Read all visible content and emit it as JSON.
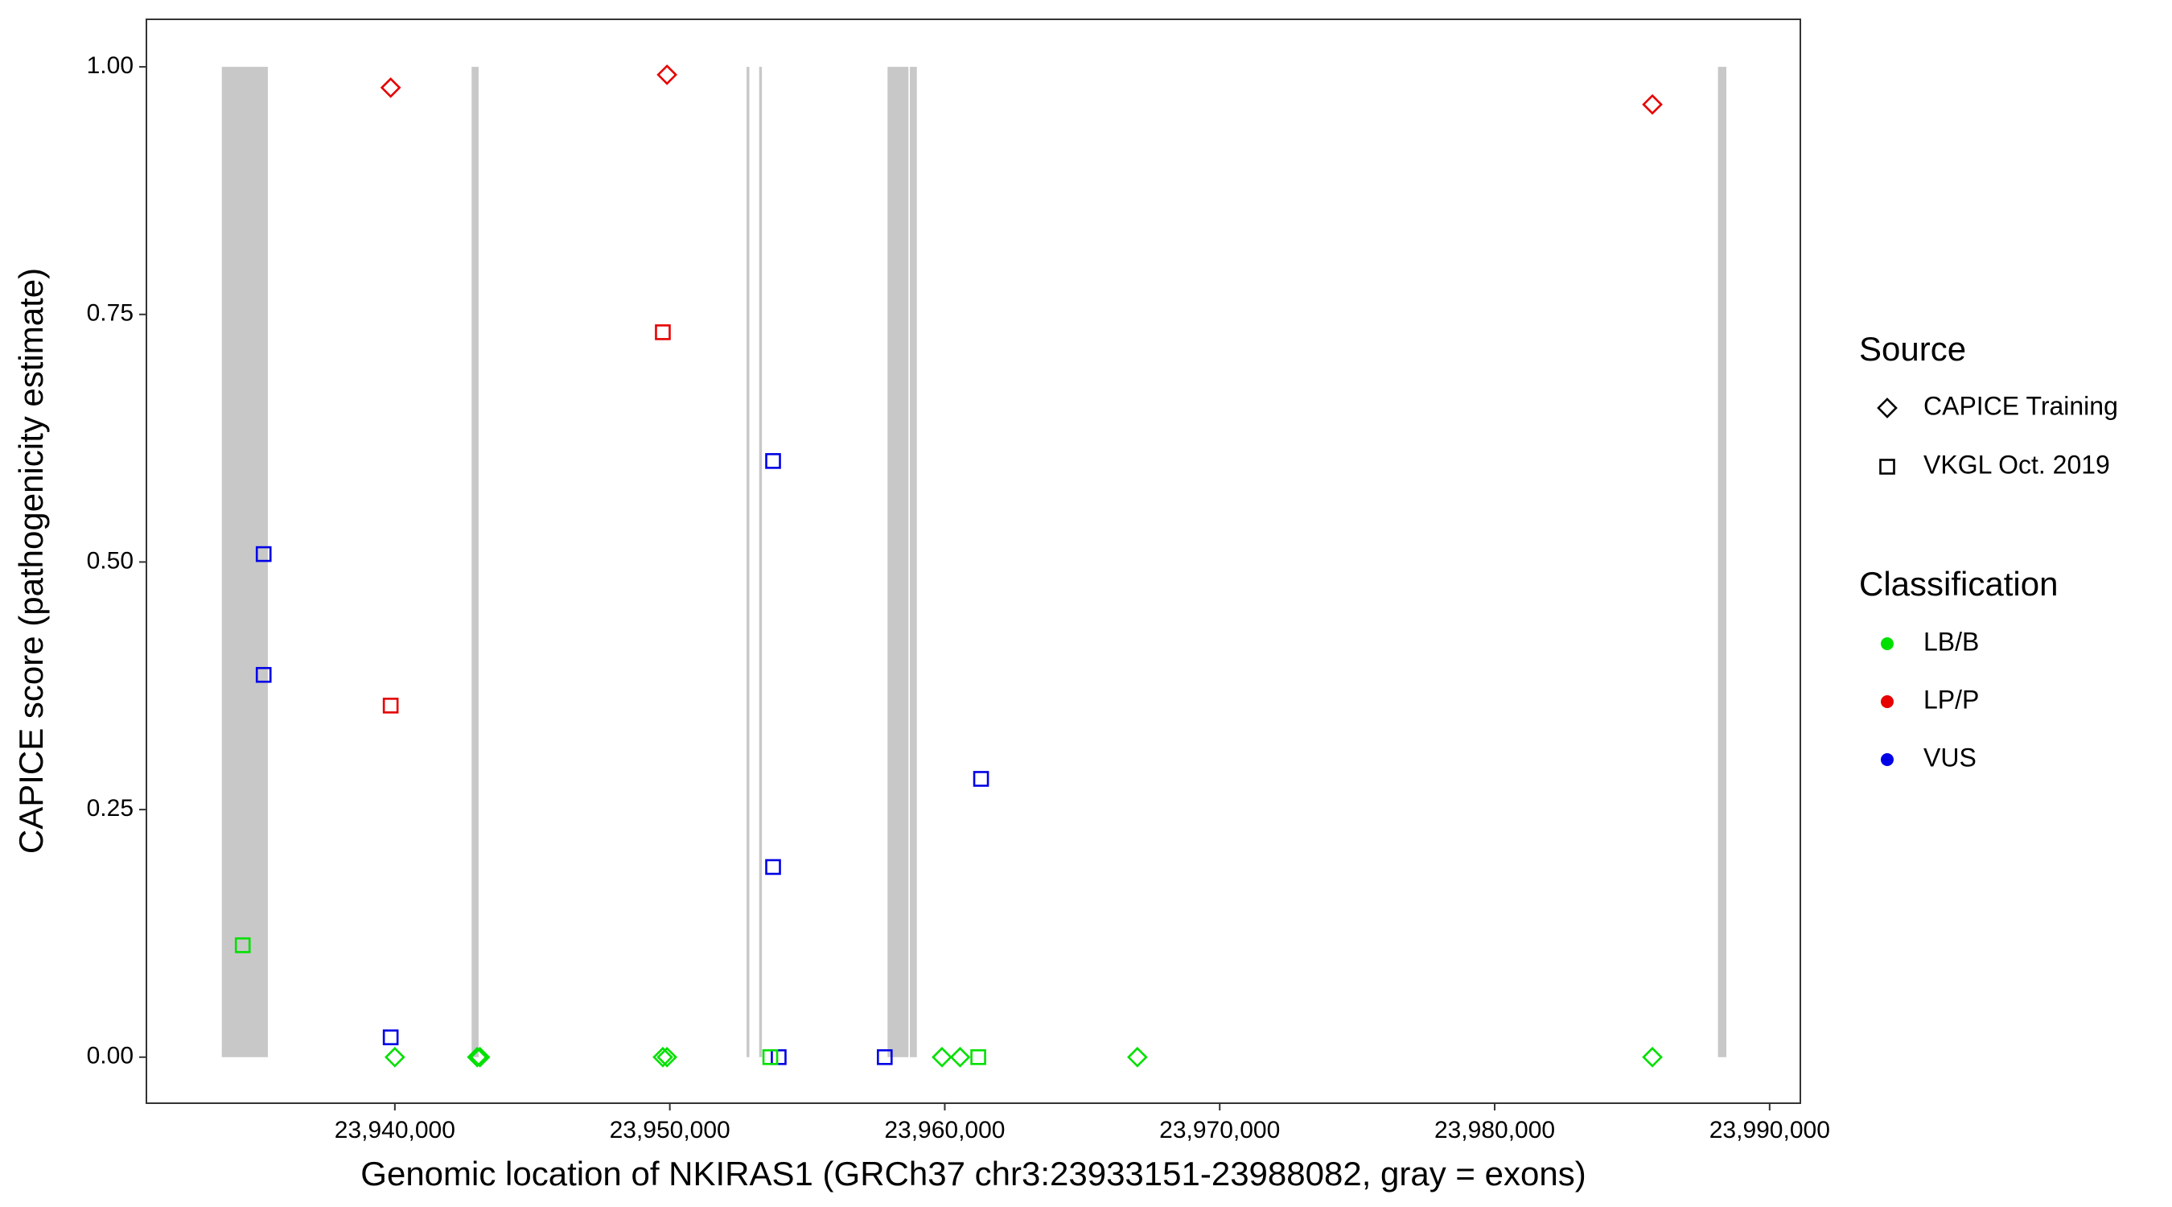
{
  "chart_data": {
    "type": "scatter",
    "xlabel": "Genomic location of NKIRAS1 (GRCh37 chr3:23933151-23988082, gray = exons)",
    "ylabel": "CAPICE score (pathogenicity estimate)",
    "xlim": [
      23930964,
      23991117
    ],
    "ylim": [
      -0.0465,
      1.048
    ],
    "xticks": [
      {
        "value": 23940000,
        "label": "23,940,000"
      },
      {
        "value": 23950000,
        "label": "23,950,000"
      },
      {
        "value": 23960000,
        "label": "23,960,000"
      },
      {
        "value": 23970000,
        "label": "23,970,000"
      },
      {
        "value": 23980000,
        "label": "23,980,000"
      },
      {
        "value": 23990000,
        "label": "23,990,000"
      }
    ],
    "yticks": [
      {
        "value": 0,
        "label": "0.00"
      },
      {
        "value": 0.25,
        "label": "0.25"
      },
      {
        "value": 0.5,
        "label": "0.50"
      },
      {
        "value": 0.75,
        "label": "0.75"
      },
      {
        "value": 1,
        "label": "1.00"
      }
    ],
    "exons": {
      "color": "#c8c8c8",
      "ylim": [
        0,
        1
      ],
      "ranges": [
        [
          23933706,
          23935381
        ],
        [
          23942792,
          23943046
        ],
        [
          23952792,
          23952893
        ],
        [
          23953249,
          23953350
        ],
        [
          23957919,
          23958680
        ],
        [
          23958731,
          23958985
        ],
        [
          23988122,
          23988426
        ]
      ]
    },
    "legend": {
      "source": {
        "title": "Source",
        "entries": [
          {
            "name": "CAPICE Training",
            "shape": "diamond"
          },
          {
            "name": "VKGL Oct. 2019",
            "shape": "square"
          }
        ]
      },
      "classification": {
        "title": "Classification",
        "entries": [
          {
            "name": "LB/B",
            "color": "#00e000"
          },
          {
            "name": "LP/P",
            "color": "#e60000"
          },
          {
            "name": "VUS",
            "color": "#0000e6"
          }
        ]
      }
    },
    "points": {
      "x": [
        23939848,
        23949898,
        23985736,
        23940000,
        23942995,
        23943096,
        23949746,
        23949898,
        23959898,
        23960558,
        23967005,
        23985736,
        23939848,
        23949746,
        23935228,
        23935228,
        23939848,
        23953756,
        23953756,
        23953959,
        23957817,
        23961320,
        23934467,
        23953655,
        23961218
      ],
      "y": [
        0.979,
        0.992,
        0.962,
        0,
        0,
        0,
        0,
        0,
        0,
        0,
        0,
        0,
        0.355,
        0.732,
        0.508,
        0.386,
        0.02,
        0.602,
        0.192,
        0,
        0,
        0.281,
        0.113,
        0,
        0
      ],
      "source": [
        "CAPICE Training",
        "CAPICE Training",
        "CAPICE Training",
        "CAPICE Training",
        "CAPICE Training",
        "CAPICE Training",
        "CAPICE Training",
        "CAPICE Training",
        "CAPICE Training",
        "CAPICE Training",
        "CAPICE Training",
        "CAPICE Training",
        "VKGL Oct. 2019",
        "VKGL Oct. 2019",
        "VKGL Oct. 2019",
        "VKGL Oct. 2019",
        "VKGL Oct. 2019",
        "VKGL Oct. 2019",
        "VKGL Oct. 2019",
        "VKGL Oct. 2019",
        "VKGL Oct. 2019",
        "VKGL Oct. 2019",
        "VKGL Oct. 2019",
        "VKGL Oct. 2019",
        "VKGL Oct. 2019"
      ],
      "classification": [
        "LP/P",
        "LP/P",
        "LP/P",
        "LB/B",
        "LB/B",
        "LB/B",
        "LB/B",
        "LB/B",
        "LB/B",
        "LB/B",
        "LB/B",
        "LB/B",
        "LP/P",
        "LP/P",
        "VUS",
        "VUS",
        "VUS",
        "VUS",
        "VUS",
        "VUS",
        "VUS",
        "VUS",
        "LB/B",
        "LB/B",
        "LB/B"
      ]
    }
  }
}
